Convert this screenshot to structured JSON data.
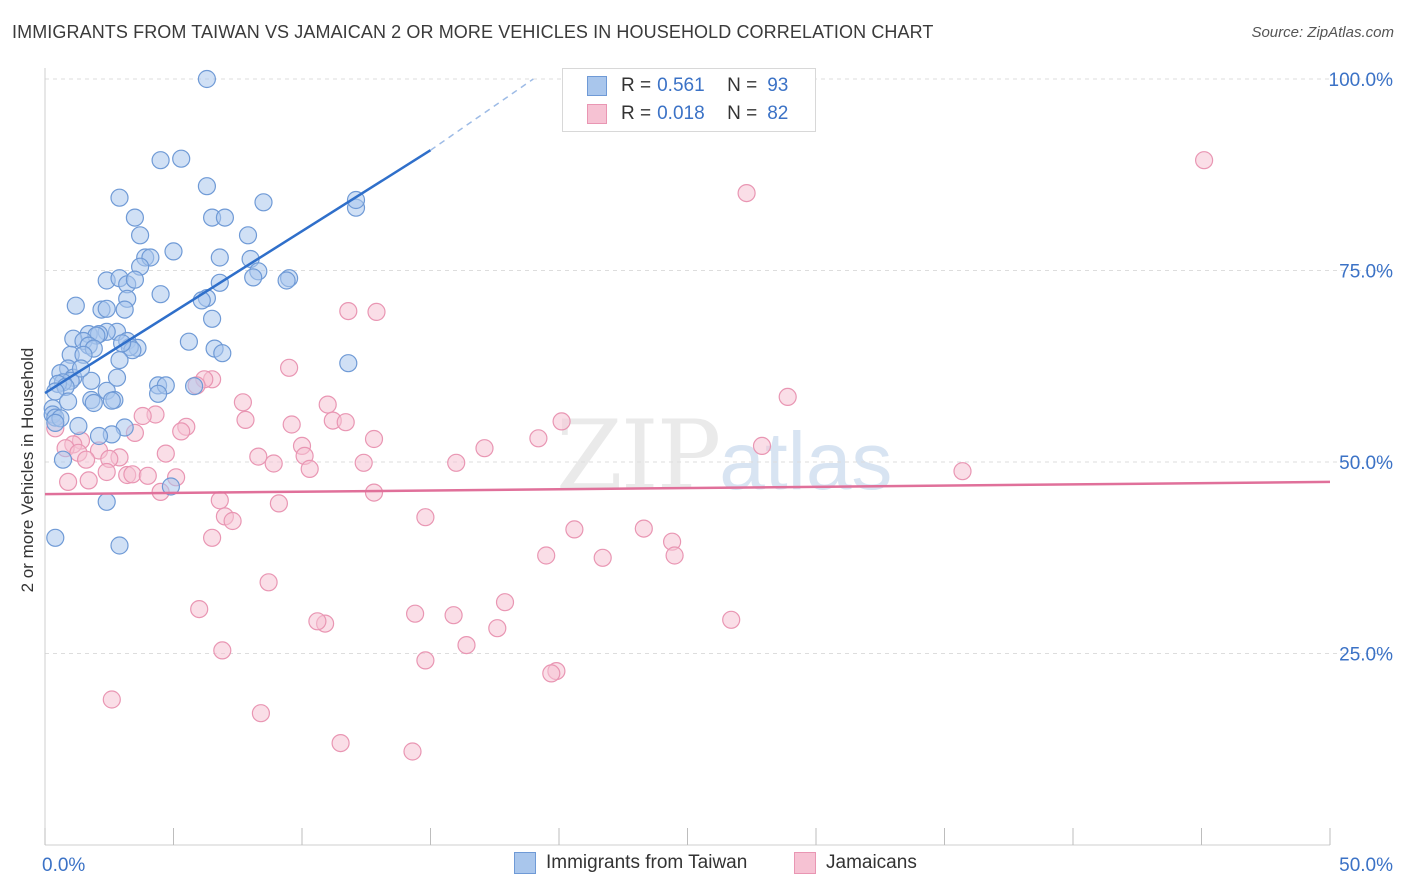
{
  "title": "IMMIGRANTS FROM TAIWAN VS JAMAICAN 2 OR MORE VEHICLES IN HOUSEHOLD CORRELATION CHART",
  "source": "Source: ZipAtlas.com",
  "watermark": {
    "zip": "ZIP",
    "atlas": "atlas"
  },
  "legend": {
    "rows": [
      {
        "r_label": "R =",
        "r_value": "0.561",
        "n_label": "N =",
        "n_value": "93"
      },
      {
        "r_label": "R =",
        "r_value": "0.018",
        "n_label": "N =",
        "n_value": "82"
      }
    ]
  },
  "bottom_legend": {
    "taiwan": "Immigrants from Taiwan",
    "jamaicans": "Jamaicans"
  },
  "colors": {
    "taiwan_fill": "#a9c6ec",
    "taiwan_stroke": "#6f9ad6",
    "taiwan_line": "#2f6fca",
    "jamaican_fill": "#f6c2d3",
    "jamaican_stroke": "#e996b3",
    "jamaican_line": "#e0709a",
    "axis_label": "#3b72c6",
    "grid": "#dddddd"
  },
  "chart_data": {
    "type": "scatter",
    "title": "IMMIGRANTS FROM TAIWAN VS JAMAICAN 2 OR MORE VEHICLES IN HOUSEHOLD CORRELATION CHART",
    "xlabel": "",
    "ylabel": "2 or more Vehicles in Household",
    "xlim": [
      0,
      50
    ],
    "ylim": [
      0,
      105
    ],
    "x_tick_labels": [
      "0.0%",
      "50.0%"
    ],
    "y_ticks": [
      25,
      50,
      75,
      100
    ],
    "y_tick_labels": [
      "25.0%",
      "50.0%",
      "75.0%",
      "100.0%"
    ],
    "series": [
      {
        "name": "Immigrants from Taiwan",
        "R": 0.561,
        "N": 93,
        "trend": {
          "x0": 0.0,
          "y0": 59.0,
          "x1": 15.0,
          "y1": 90.7,
          "dashed_to_x": 19.0,
          "dashed_to_y": 100.0
        },
        "points": [
          [
            6.3,
            100.0
          ],
          [
            4.5,
            89.4
          ],
          [
            5.3,
            89.6
          ],
          [
            2.9,
            84.5
          ],
          [
            6.3,
            86.0
          ],
          [
            8.5,
            83.9
          ],
          [
            12.1,
            83.2
          ],
          [
            12.1,
            84.2
          ],
          [
            3.5,
            81.9
          ],
          [
            6.5,
            81.9
          ],
          [
            7.0,
            81.9
          ],
          [
            3.7,
            79.6
          ],
          [
            7.9,
            79.6
          ],
          [
            5.0,
            77.5
          ],
          [
            3.9,
            76.7
          ],
          [
            4.1,
            76.7
          ],
          [
            6.8,
            76.7
          ],
          [
            8.0,
            76.5
          ],
          [
            3.7,
            75.5
          ],
          [
            8.3,
            74.9
          ],
          [
            9.5,
            74.0
          ],
          [
            2.4,
            73.7
          ],
          [
            2.9,
            74.0
          ],
          [
            8.1,
            74.1
          ],
          [
            9.4,
            73.7
          ],
          [
            3.2,
            73.2
          ],
          [
            3.5,
            73.8
          ],
          [
            6.8,
            73.4
          ],
          [
            4.5,
            71.9
          ],
          [
            6.3,
            71.4
          ],
          [
            1.2,
            70.4
          ],
          [
            6.1,
            71.1
          ],
          [
            3.2,
            71.3
          ],
          [
            2.2,
            69.9
          ],
          [
            2.4,
            70.0
          ],
          [
            3.1,
            69.9
          ],
          [
            6.5,
            68.7
          ],
          [
            2.8,
            67.0
          ],
          [
            2.4,
            67.0
          ],
          [
            1.7,
            66.7
          ],
          [
            2.1,
            66.7
          ],
          [
            2.0,
            66.5
          ],
          [
            1.1,
            66.1
          ],
          [
            1.5,
            65.8
          ],
          [
            3.2,
            65.8
          ],
          [
            5.6,
            65.7
          ],
          [
            6.6,
            64.8
          ],
          [
            3.6,
            64.9
          ],
          [
            3.3,
            65.0
          ],
          [
            3.4,
            64.6
          ],
          [
            1.7,
            65.2
          ],
          [
            1.9,
            64.8
          ],
          [
            6.9,
            64.2
          ],
          [
            1.0,
            64.0
          ],
          [
            1.5,
            64.0
          ],
          [
            2.9,
            63.3
          ],
          [
            11.8,
            62.9
          ],
          [
            0.9,
            62.2
          ],
          [
            0.6,
            61.6
          ],
          [
            1.1,
            61.0
          ],
          [
            1.0,
            60.6
          ],
          [
            1.8,
            60.6
          ],
          [
            0.7,
            60.4
          ],
          [
            0.5,
            60.2
          ],
          [
            4.4,
            60.0
          ],
          [
            4.7,
            60.0
          ],
          [
            0.8,
            59.8
          ],
          [
            2.4,
            59.3
          ],
          [
            0.4,
            59.2
          ],
          [
            4.4,
            58.9
          ],
          [
            2.7,
            58.1
          ],
          [
            1.8,
            58.1
          ],
          [
            2.6,
            58.0
          ],
          [
            0.9,
            57.9
          ],
          [
            1.9,
            57.7
          ],
          [
            0.3,
            57.0
          ],
          [
            0.3,
            56.2
          ],
          [
            0.4,
            55.8
          ],
          [
            0.6,
            55.7
          ],
          [
            0.4,
            55.1
          ],
          [
            1.3,
            54.7
          ],
          [
            3.1,
            54.5
          ],
          [
            2.6,
            53.6
          ],
          [
            2.1,
            53.4
          ],
          [
            0.7,
            50.3
          ],
          [
            4.9,
            46.8
          ],
          [
            2.4,
            44.8
          ],
          [
            0.4,
            40.1
          ],
          [
            2.9,
            39.1
          ],
          [
            2.8,
            61.0
          ],
          [
            5.8,
            59.9
          ],
          [
            1.4,
            62.2
          ],
          [
            3.0,
            65.5
          ]
        ]
      },
      {
        "name": "Jamaicans",
        "R": 0.018,
        "N": 82,
        "trend": {
          "x0": 0.0,
          "y0": 45.8,
          "x1": 50.0,
          "y1": 47.4
        },
        "points": [
          [
            45.1,
            89.4
          ],
          [
            27.3,
            85.1
          ],
          [
            11.8,
            69.7
          ],
          [
            12.9,
            69.6
          ],
          [
            9.5,
            62.3
          ],
          [
            6.5,
            60.8
          ],
          [
            6.2,
            60.8
          ],
          [
            5.9,
            60.0
          ],
          [
            28.9,
            58.5
          ],
          [
            7.7,
            57.8
          ],
          [
            11.0,
            57.5
          ],
          [
            4.3,
            56.2
          ],
          [
            3.8,
            56.0
          ],
          [
            7.8,
            55.5
          ],
          [
            11.2,
            55.4
          ],
          [
            11.7,
            55.2
          ],
          [
            20.1,
            55.3
          ],
          [
            9.6,
            54.9
          ],
          [
            5.5,
            54.6
          ],
          [
            5.3,
            54.0
          ],
          [
            3.5,
            53.8
          ],
          [
            19.2,
            53.1
          ],
          [
            12.8,
            53.0
          ],
          [
            1.4,
            52.8
          ],
          [
            1.1,
            52.3
          ],
          [
            27.9,
            52.1
          ],
          [
            10.0,
            52.1
          ],
          [
            0.8,
            51.8
          ],
          [
            17.1,
            51.8
          ],
          [
            2.1,
            51.5
          ],
          [
            1.3,
            51.2
          ],
          [
            4.7,
            51.1
          ],
          [
            10.1,
            50.8
          ],
          [
            8.3,
            50.7
          ],
          [
            2.9,
            50.6
          ],
          [
            2.5,
            50.4
          ],
          [
            1.6,
            50.3
          ],
          [
            16.0,
            49.9
          ],
          [
            12.4,
            49.9
          ],
          [
            8.9,
            49.8
          ],
          [
            10.3,
            49.1
          ],
          [
            35.7,
            48.8
          ],
          [
            2.4,
            48.7
          ],
          [
            3.2,
            48.3
          ],
          [
            3.4,
            48.4
          ],
          [
            4.0,
            48.2
          ],
          [
            5.1,
            48.0
          ],
          [
            1.7,
            47.6
          ],
          [
            0.9,
            47.4
          ],
          [
            4.5,
            46.1
          ],
          [
            12.8,
            46.0
          ],
          [
            6.8,
            45.0
          ],
          [
            9.1,
            44.6
          ],
          [
            7.0,
            42.9
          ],
          [
            14.8,
            42.8
          ],
          [
            7.3,
            42.3
          ],
          [
            23.3,
            41.3
          ],
          [
            20.6,
            41.2
          ],
          [
            6.5,
            40.1
          ],
          [
            24.4,
            39.6
          ],
          [
            19.5,
            37.8
          ],
          [
            24.5,
            37.8
          ],
          [
            21.7,
            37.5
          ],
          [
            8.7,
            34.3
          ],
          [
            6.0,
            30.8
          ],
          [
            17.9,
            31.7
          ],
          [
            14.4,
            30.2
          ],
          [
            15.9,
            30.0
          ],
          [
            26.7,
            29.4
          ],
          [
            10.9,
            28.9
          ],
          [
            10.6,
            29.2
          ],
          [
            17.6,
            28.3
          ],
          [
            16.4,
            26.1
          ],
          [
            6.9,
            25.4
          ],
          [
            14.8,
            24.1
          ],
          [
            19.9,
            22.7
          ],
          [
            19.7,
            22.4
          ],
          [
            2.6,
            19.0
          ],
          [
            8.4,
            17.2
          ],
          [
            11.5,
            13.3
          ],
          [
            14.3,
            12.2
          ],
          [
            0.4,
            54.4
          ]
        ]
      }
    ]
  }
}
